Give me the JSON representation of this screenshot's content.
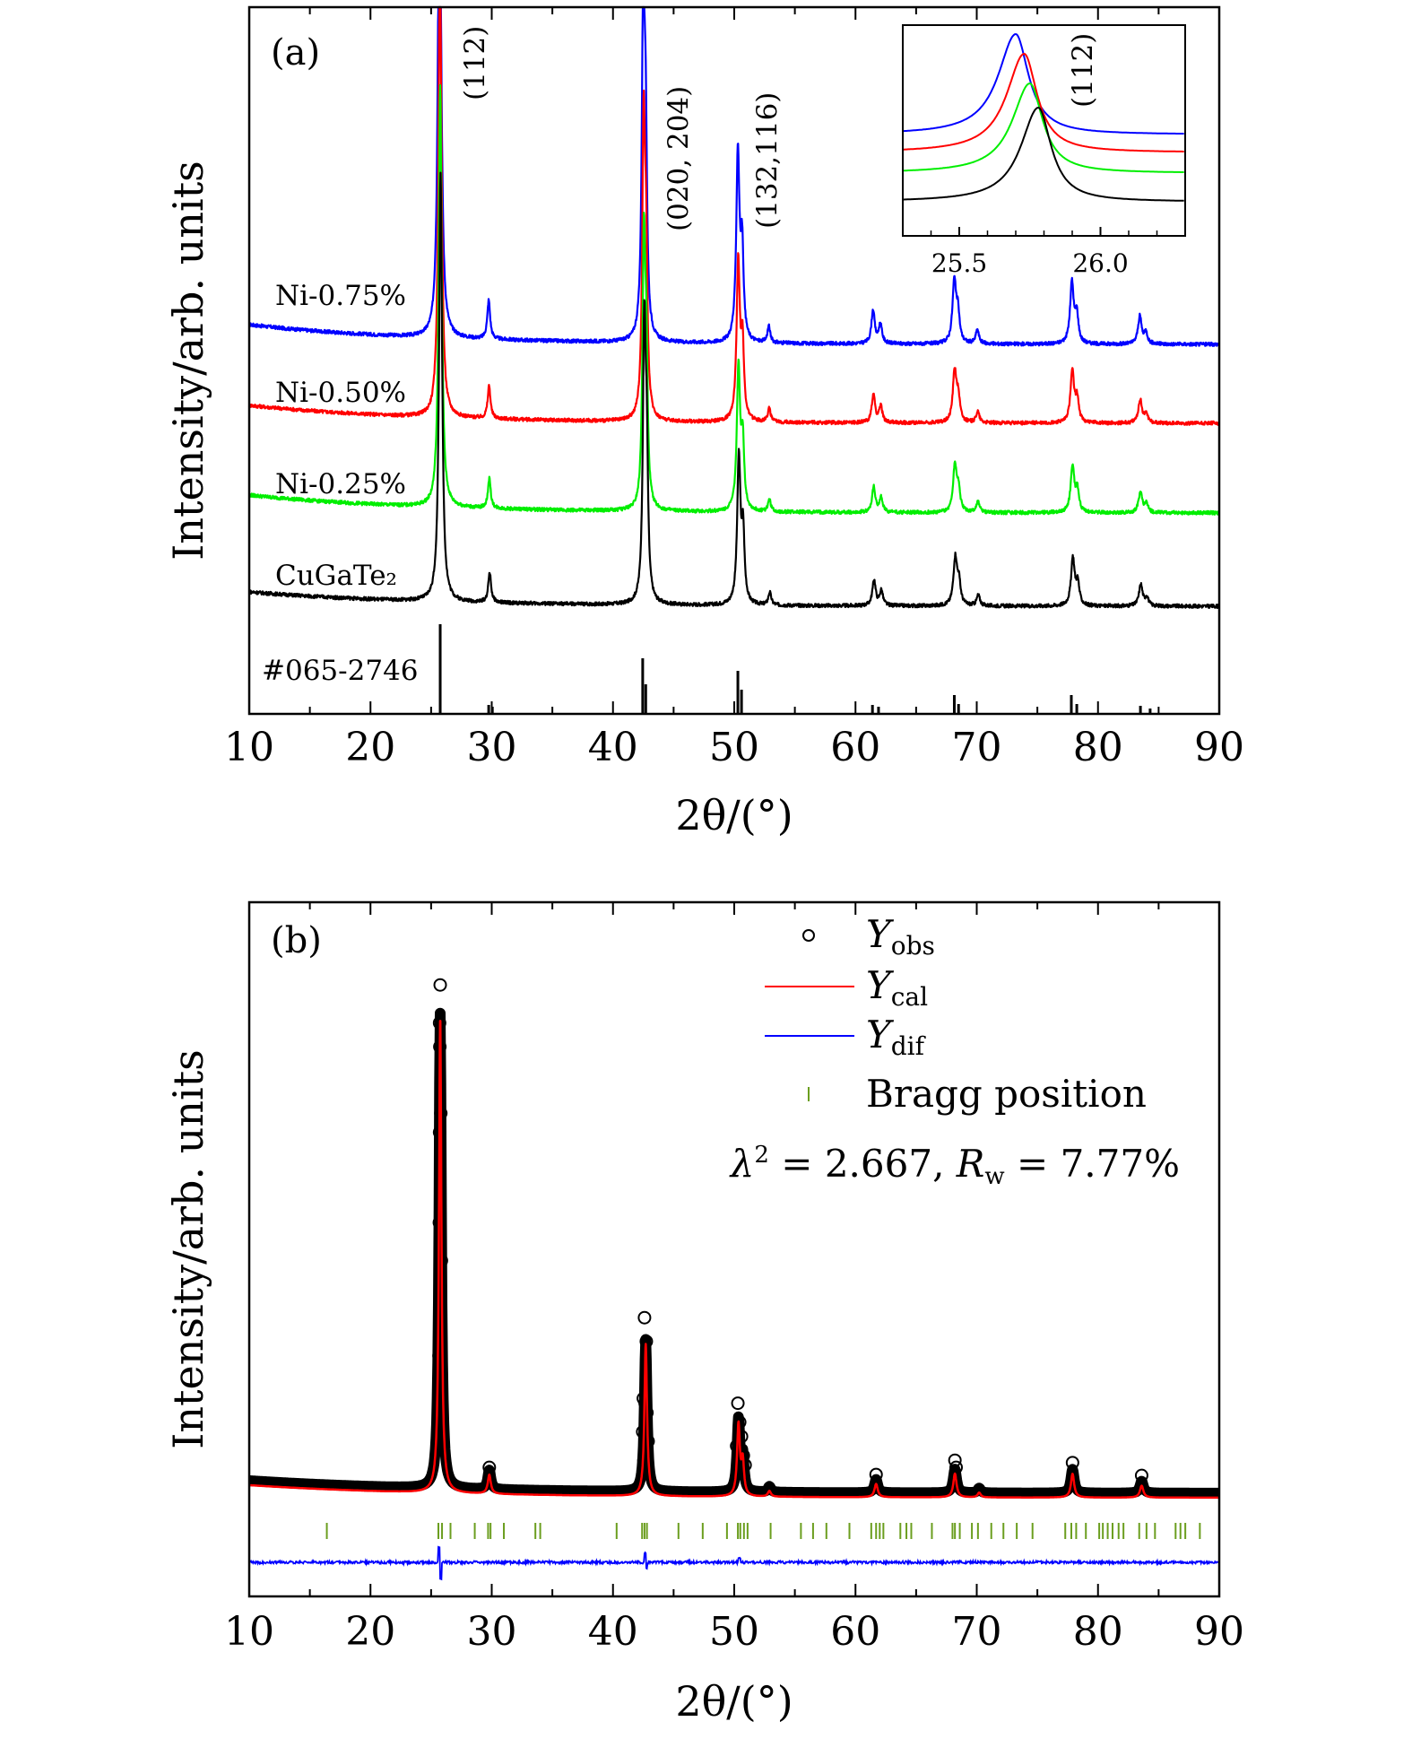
{
  "chart_data": [
    {
      "panel": "(a)",
      "type": "line",
      "xlabel": "2θ/(°)",
      "ylabel": "Intensity/arb. units",
      "xlim": [
        10,
        90
      ],
      "xticks": [
        10,
        20,
        30,
        40,
        50,
        60,
        70,
        80,
        90
      ],
      "grid": false,
      "stacking": "vertical offset",
      "series": [
        {
          "name": "Ni-0.75%",
          "color": "#0000ff"
        },
        {
          "name": "Ni-0.50%",
          "color": "#ff0000"
        },
        {
          "name": "Ni-0.25%",
          "color": "#00ee00"
        },
        {
          "name": "CuGaTe₂",
          "color": "#000000"
        }
      ],
      "peaks": [
        {
          "x": 25.75,
          "rel": 1.0,
          "width": 0.15
        },
        {
          "x": 29.8,
          "rel": 0.07,
          "width": 0.14
        },
        {
          "x": 42.55,
          "rel": 0.62,
          "width": 0.14
        },
        {
          "x": 42.75,
          "rel": 0.3,
          "width": 0.13
        },
        {
          "x": 50.35,
          "rel": 0.34,
          "width": 0.16
        },
        {
          "x": 50.7,
          "rel": 0.16,
          "width": 0.14
        },
        {
          "x": 52.9,
          "rel": 0.03,
          "width": 0.14
        },
        {
          "x": 61.5,
          "rel": 0.06,
          "width": 0.16
        },
        {
          "x": 62.1,
          "rel": 0.035,
          "width": 0.16
        },
        {
          "x": 68.2,
          "rel": 0.11,
          "width": 0.18
        },
        {
          "x": 68.5,
          "rel": 0.05,
          "width": 0.16
        },
        {
          "x": 70.1,
          "rel": 0.025,
          "width": 0.16
        },
        {
          "x": 77.9,
          "rel": 0.11,
          "width": 0.18
        },
        {
          "x": 78.3,
          "rel": 0.05,
          "width": 0.16
        },
        {
          "x": 83.5,
          "rel": 0.05,
          "width": 0.18
        },
        {
          "x": 84.0,
          "rel": 0.02,
          "width": 0.16
        }
      ],
      "peak_labels": [
        "(112)",
        "(020, 204)",
        "(132,116)"
      ],
      "reference": {
        "name": "#065-2746",
        "sticks": [
          [
            25.75,
            1.0
          ],
          [
            29.75,
            0.1
          ],
          [
            30.05,
            0.08
          ],
          [
            42.45,
            0.62
          ],
          [
            42.7,
            0.33
          ],
          [
            50.3,
            0.48
          ],
          [
            50.6,
            0.27
          ],
          [
            61.4,
            0.1
          ],
          [
            61.9,
            0.08
          ],
          [
            68.15,
            0.21
          ],
          [
            68.5,
            0.11
          ],
          [
            77.8,
            0.21
          ],
          [
            78.25,
            0.11
          ],
          [
            83.5,
            0.09
          ],
          [
            84.3,
            0.06
          ]
        ]
      },
      "inset": {
        "label": "(112)",
        "xlim": [
          25.3,
          26.3
        ],
        "xticks": [
          25.5,
          26.0
        ],
        "peak_positions": {
          "Ni-0.75%": 25.7,
          "Ni-0.50%": 25.73,
          "Ni-0.25%": 25.75,
          "CuGaTe₂": 25.78
        }
      }
    },
    {
      "panel": "(b)",
      "type": "scatter",
      "xlabel": "2θ/(°)",
      "ylabel": "Intensity/arb. units",
      "xlim": [
        10,
        90
      ],
      "xticks": [
        10,
        20,
        30,
        40,
        50,
        60,
        70,
        80,
        90
      ],
      "grid": false,
      "legend_position": "top-right",
      "legend": [
        {
          "name": "Y",
          "sub": "obs",
          "style": "open circle",
          "color": "#000000"
        },
        {
          "name": "Y",
          "sub": "cal",
          "style": "line",
          "color": "#ff0000"
        },
        {
          "name": "Y",
          "sub": "dif",
          "style": "line",
          "color": "#0000ff"
        },
        {
          "name": "Bragg position",
          "style": "tick",
          "color": "#6b9e1f"
        }
      ],
      "fit_stats": {
        "lambda2": "2.667",
        "Rw": "7.77%"
      },
      "peaks": [
        {
          "x": 25.75,
          "rel": 1.0,
          "width": 0.12
        },
        {
          "x": 29.8,
          "rel": 0.04,
          "width": 0.15
        },
        {
          "x": 42.7,
          "rel": 0.32,
          "width": 0.13
        },
        {
          "x": 50.35,
          "rel": 0.15,
          "width": 0.14
        },
        {
          "x": 50.7,
          "rel": 0.07,
          "width": 0.13
        },
        {
          "x": 52.9,
          "rel": 0.012,
          "width": 0.15
        },
        {
          "x": 61.7,
          "rel": 0.028,
          "width": 0.16
        },
        {
          "x": 68.2,
          "rel": 0.05,
          "width": 0.16
        },
        {
          "x": 70.2,
          "rel": 0.01,
          "width": 0.15
        },
        {
          "x": 77.9,
          "rel": 0.05,
          "width": 0.16
        },
        {
          "x": 83.6,
          "rel": 0.025,
          "width": 0.17
        }
      ],
      "obs_points": [
        [
          25.75,
          1.06
        ],
        [
          25.7,
          0.98
        ],
        [
          25.72,
          0.93
        ],
        [
          25.8,
          0.79
        ],
        [
          25.7,
          0.75
        ],
        [
          25.68,
          0.56
        ],
        [
          25.85,
          0.48
        ],
        [
          25.65,
          0.28
        ],
        [
          25.6,
          0.13
        ],
        [
          25.9,
          0.09
        ],
        [
          42.6,
          0.36
        ],
        [
          42.75,
          0.31
        ],
        [
          42.5,
          0.19
        ],
        [
          42.65,
          0.18
        ],
        [
          42.8,
          0.16
        ],
        [
          42.45,
          0.12
        ],
        [
          42.9,
          0.1
        ],
        [
          42.55,
          0.06
        ],
        [
          50.3,
          0.18
        ],
        [
          50.45,
          0.14
        ],
        [
          50.6,
          0.11
        ],
        [
          50.2,
          0.09
        ],
        [
          50.75,
          0.07
        ],
        [
          50.9,
          0.05
        ],
        [
          29.8,
          0.045
        ],
        [
          61.7,
          0.03
        ],
        [
          68.2,
          0.06
        ],
        [
          68.3,
          0.045
        ],
        [
          77.9,
          0.055
        ],
        [
          83.6,
          0.028
        ]
      ],
      "bragg_positions": [
        16.4,
        25.6,
        25.9,
        26.6,
        28.6,
        29.7,
        29.9,
        31.0,
        33.6,
        34.0,
        40.3,
        42.4,
        42.6,
        42.8,
        45.4,
        47.4,
        49.4,
        50.3,
        50.5,
        50.8,
        51.1,
        53.0,
        55.5,
        56.5,
        57.6,
        59.5,
        61.3,
        61.7,
        62.0,
        62.3,
        63.7,
        64.2,
        64.6,
        66.3,
        68.0,
        68.2,
        68.6,
        69.6,
        70.1,
        71.2,
        72.2,
        73.3,
        74.6,
        77.3,
        77.8,
        78.2,
        79.0,
        80.1,
        80.4,
        80.8,
        81.2,
        81.7,
        82.1,
        83.4,
        84.0,
        84.7,
        86.4,
        86.8,
        87.2,
        88.4
      ]
    }
  ]
}
